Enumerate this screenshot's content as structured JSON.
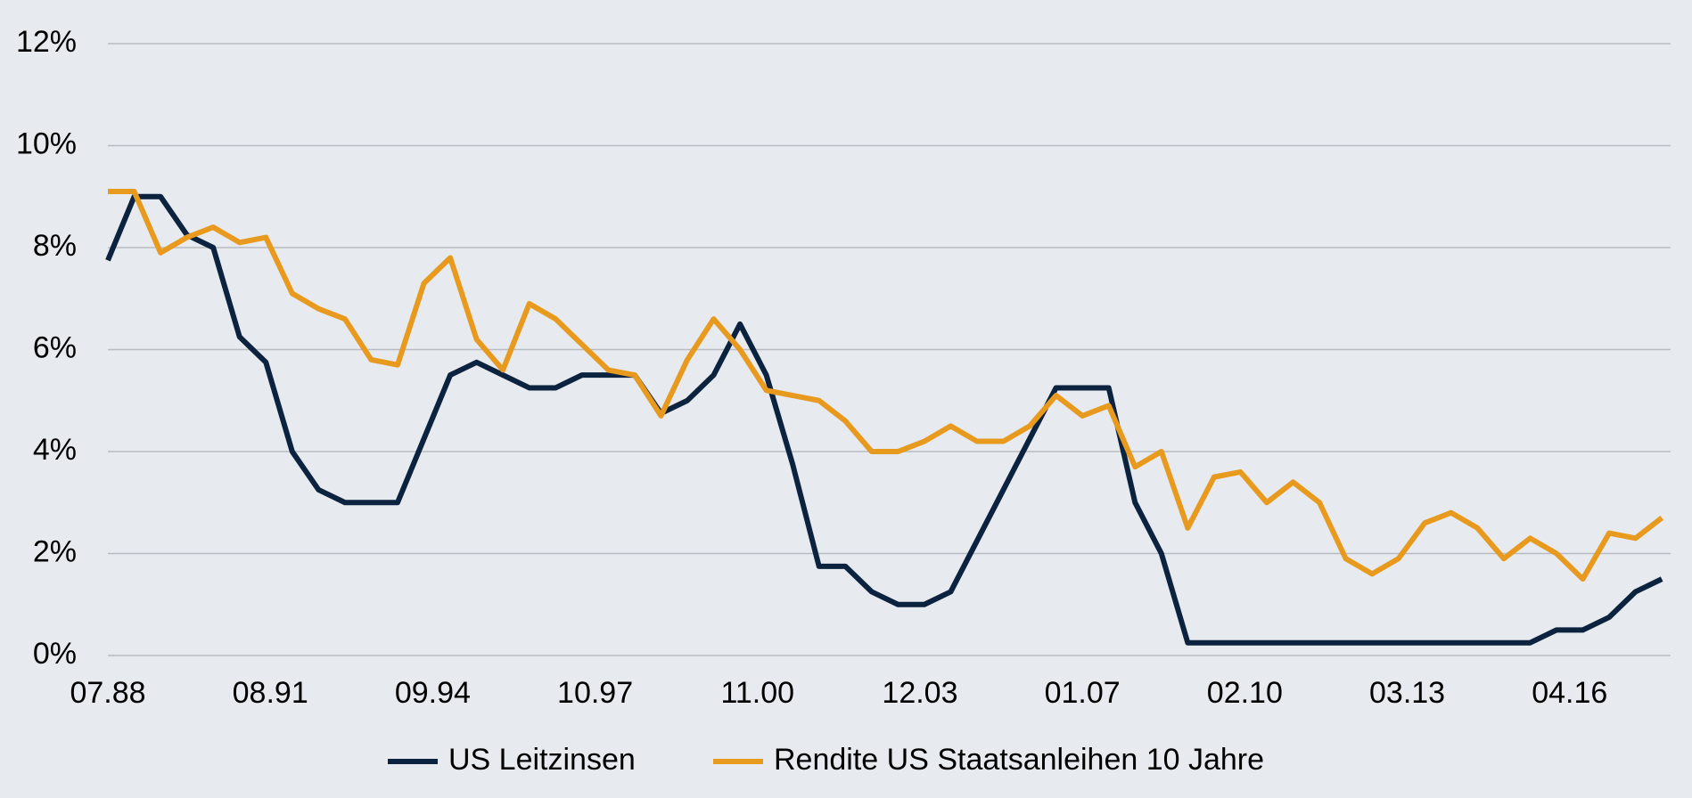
{
  "chart_data": {
    "type": "line",
    "x": [
      "1988-07",
      "1989-01",
      "1989-07",
      "1990-01",
      "1990-07",
      "1991-01",
      "1991-07",
      "1992-01",
      "1992-07",
      "1993-01",
      "1993-07",
      "1994-01",
      "1994-07",
      "1995-01",
      "1995-07",
      "1996-01",
      "1996-07",
      "1997-01",
      "1997-07",
      "1998-01",
      "1998-07",
      "1999-01",
      "1999-07",
      "2000-01",
      "2000-07",
      "2001-01",
      "2001-07",
      "2002-01",
      "2002-07",
      "2003-01",
      "2003-07",
      "2004-01",
      "2004-07",
      "2005-01",
      "2005-07",
      "2006-01",
      "2006-07",
      "2007-01",
      "2007-07",
      "2008-01",
      "2008-07",
      "2009-01",
      "2009-07",
      "2010-01",
      "2010-07",
      "2011-01",
      "2011-07",
      "2012-01",
      "2012-07",
      "2013-01",
      "2013-07",
      "2014-01",
      "2014-07",
      "2015-01",
      "2015-07",
      "2016-01",
      "2016-07",
      "2017-01",
      "2017-07",
      "2018-01"
    ],
    "series": [
      {
        "name": "US Leitzinsen",
        "color": "#0c2340",
        "values": [
          7.75,
          9.0,
          9.0,
          8.25,
          8.0,
          6.25,
          5.75,
          4.0,
          3.25,
          3.0,
          3.0,
          3.0,
          4.25,
          5.5,
          5.75,
          5.5,
          5.25,
          5.25,
          5.5,
          5.5,
          5.5,
          4.75,
          5.0,
          5.5,
          6.5,
          5.5,
          3.75,
          1.75,
          1.75,
          1.25,
          1.0,
          1.0,
          1.25,
          2.25,
          3.25,
          4.25,
          5.25,
          5.25,
          5.25,
          3.0,
          2.0,
          0.25,
          0.25,
          0.25,
          0.25,
          0.25,
          0.25,
          0.25,
          0.25,
          0.25,
          0.25,
          0.25,
          0.25,
          0.25,
          0.25,
          0.5,
          0.5,
          0.75,
          1.25,
          1.5
        ]
      },
      {
        "name": "Rendite US Staatsanleihen 10 Jahre",
        "color": "#e89a1e",
        "values": [
          9.1,
          9.1,
          7.9,
          8.2,
          8.4,
          8.1,
          8.2,
          7.1,
          6.8,
          6.6,
          5.8,
          5.7,
          7.3,
          7.8,
          6.2,
          5.6,
          6.9,
          6.6,
          6.1,
          5.6,
          5.5,
          4.7,
          5.8,
          6.6,
          6.0,
          5.2,
          5.1,
          5.0,
          4.6,
          4.0,
          4.0,
          4.2,
          4.5,
          4.2,
          4.2,
          4.5,
          5.1,
          4.7,
          4.9,
          3.7,
          4.0,
          2.5,
          3.5,
          3.6,
          3.0,
          3.4,
          3.0,
          1.9,
          1.6,
          1.9,
          2.6,
          2.8,
          2.5,
          1.9,
          2.3,
          2.0,
          1.5,
          2.4,
          2.3,
          2.7
        ]
      }
    ],
    "xlim": [
      "1988-07",
      "2018-03"
    ],
    "xticks": [
      {
        "value": "1988-07",
        "label": "07.88"
      },
      {
        "value": "1991-08",
        "label": "08.91"
      },
      {
        "value": "1994-09",
        "label": "09.94"
      },
      {
        "value": "1997-10",
        "label": "10.97"
      },
      {
        "value": "2000-11",
        "label": "11.00"
      },
      {
        "value": "2003-12",
        "label": "12.03"
      },
      {
        "value": "2007-01",
        "label": "01.07"
      },
      {
        "value": "2010-02",
        "label": "02.10"
      },
      {
        "value": "2013-03",
        "label": "03.13"
      },
      {
        "value": "2016-04",
        "label": "04.16"
      }
    ],
    "ylim": [
      0,
      12
    ],
    "yticks": [
      {
        "value": 0,
        "label": "0%"
      },
      {
        "value": 2,
        "label": "2%"
      },
      {
        "value": 4,
        "label": "4%"
      },
      {
        "value": 6,
        "label": "6%"
      },
      {
        "value": 8,
        "label": "8%"
      },
      {
        "value": 10,
        "label": "10%"
      },
      {
        "value": 12,
        "label": "12%"
      }
    ],
    "grid": true,
    "legend": "bottom"
  }
}
